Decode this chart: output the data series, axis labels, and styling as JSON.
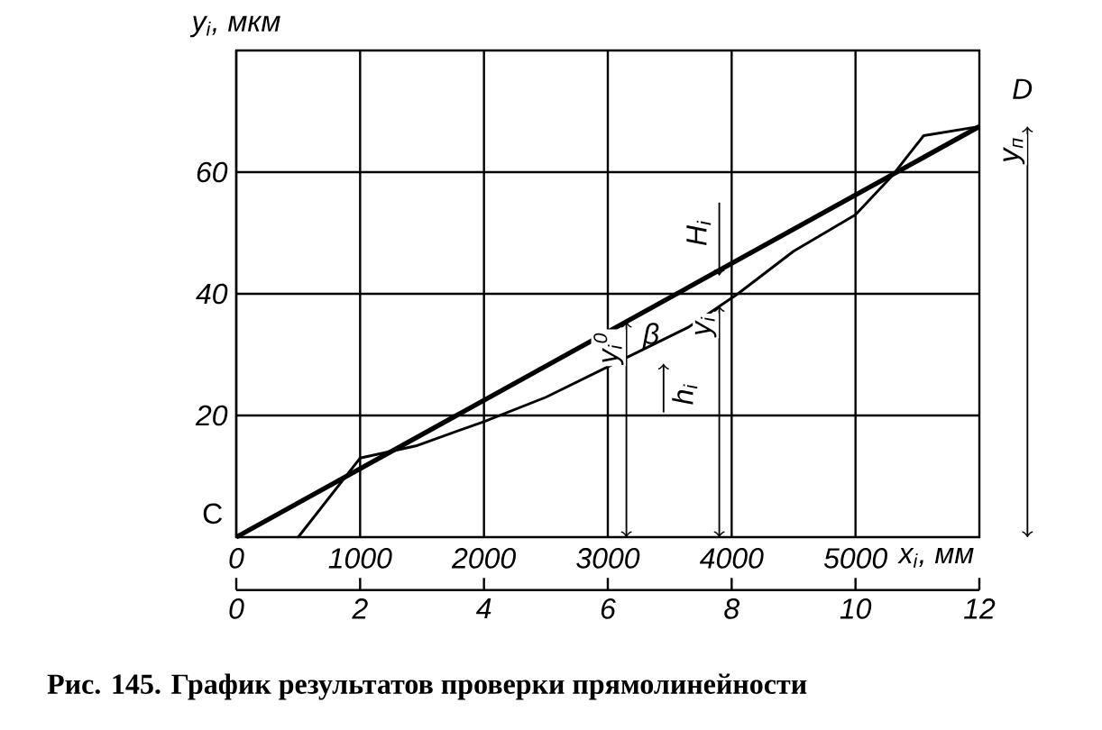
{
  "chart_data": {
    "type": "line",
    "xlabel": "x$_{i}$, мм",
    "ylabel": "y$_{i}$, мкм",
    "xlim": [
      0,
      6000
    ],
    "xticks": [
      0,
      1000,
      2000,
      3000,
      4000,
      5000
    ],
    "x2lim": [
      0,
      12
    ],
    "x2ticks": [
      0,
      2,
      4,
      6,
      8,
      10,
      12
    ],
    "ylim": [
      0,
      80
    ],
    "yticks": [
      20,
      40,
      60
    ],
    "grid": true,
    "marker": "none",
    "line_style": "solid",
    "series": [
      {
        "color": "#000000",
        "x": [
          0,
          6000
        ],
        "values": [
          0,
          67.5
        ]
      },
      {
        "color": "#000000",
        "x": [
          500,
          1000,
          1450,
          2000,
          2500,
          3050,
          3650,
          4050,
          4500,
          5000,
          5300,
          5550,
          6000
        ],
        "values": [
          0,
          13,
          15,
          19,
          23,
          28.5,
          34.5,
          40,
          47,
          53,
          59.5,
          66,
          67.5
        ]
      }
    ],
    "annotations": [
      {
        "text": "C",
        "x": 0,
        "y": 0
      },
      {
        "text": "D",
        "x": 6000,
        "y": 67.5
      },
      {
        "text": "H$_{i}$",
        "x": 3900,
        "y": 43
      },
      {
        "text": "h$_{i}$",
        "x": 3450,
        "y": 28.5
      },
      {
        "text": "β",
        "x": 3350,
        "y": 33
      },
      {
        "text": "y$_{i}$$^{0}$",
        "x": 3150,
        "y": 35.4
      },
      {
        "text": "y$_{i}$",
        "x": 3900,
        "y": 38
      },
      {
        "text": "y$_{п}$",
        "x": 6000,
        "y": 67.5
      },
      "Рис. 145. График результатов проверки прямолинейности"
    ]
  }
}
